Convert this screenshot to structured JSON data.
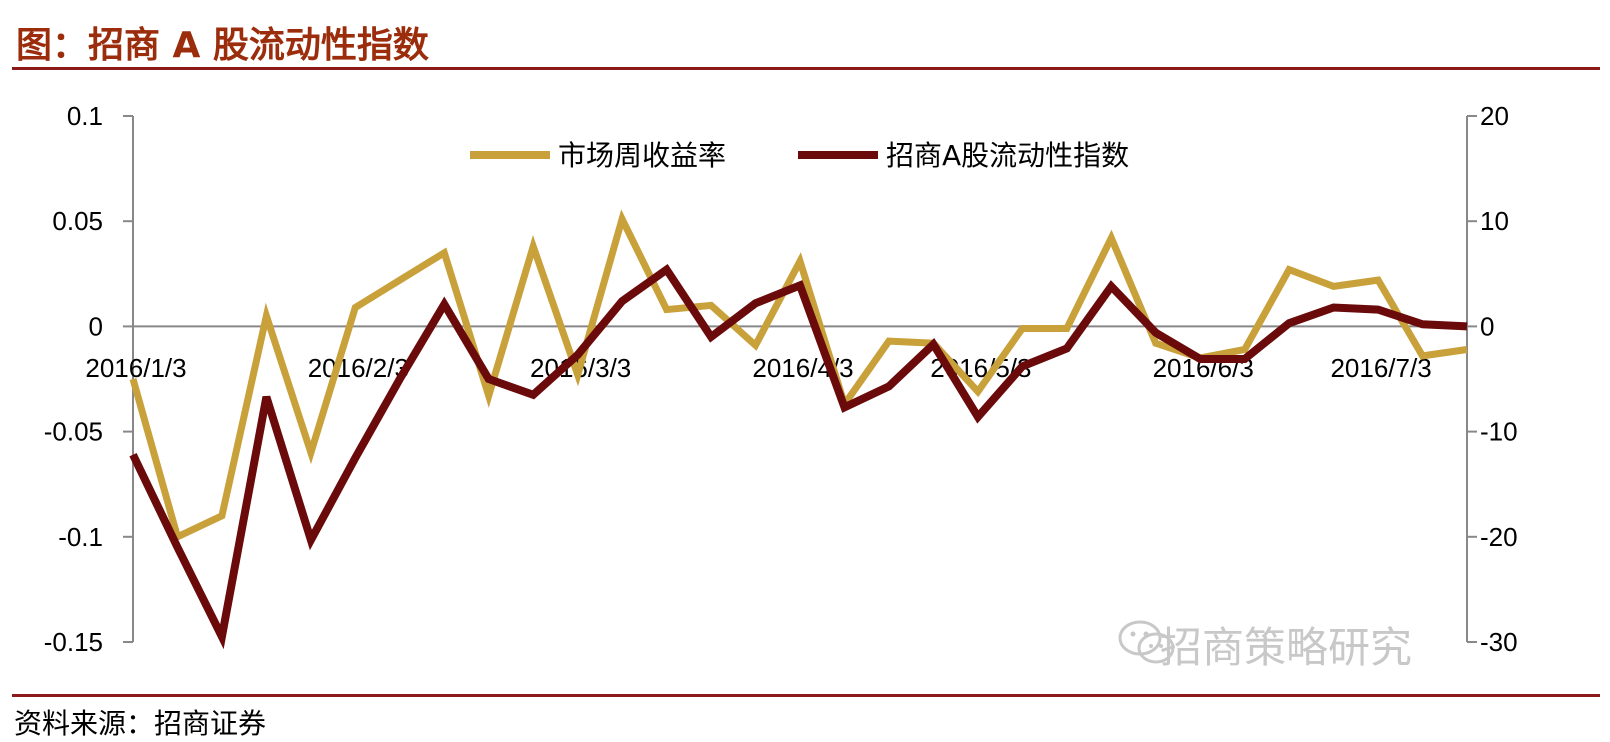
{
  "header": {
    "title": "图：招商 A 股流动性指数"
  },
  "footer": {
    "source": "资料来源：招商证券",
    "watermark": "招商策略研究",
    "watermark_icon": "wechat-icon"
  },
  "colors": {
    "returns": "#c9a13b",
    "liquidity": "#6b0a0a",
    "rule": "#8b1a1a",
    "title": "#9b2d0c"
  },
  "chart_data": {
    "type": "line",
    "title": "",
    "x": [
      0,
      1,
      2,
      3,
      4,
      5,
      6,
      7,
      8,
      9,
      10,
      11,
      12,
      13,
      14,
      15,
      16,
      17,
      18,
      19,
      20,
      21,
      22,
      23,
      24,
      25,
      26,
      27,
      28,
      29,
      30
    ],
    "x_tick_labels": [
      {
        "index": 0,
        "label": "2016/1/3"
      },
      {
        "index": 5,
        "label": "2016/2/3"
      },
      {
        "index": 10,
        "label": "2016/3/3"
      },
      {
        "index": 15,
        "label": "2016/4/3"
      },
      {
        "index": 19,
        "label": "2016/5/3"
      },
      {
        "index": 24,
        "label": "2016/6/3"
      },
      {
        "index": 28,
        "label": "2016/7/3"
      }
    ],
    "y_left": {
      "min": -0.15,
      "max": 0.1,
      "ticks": [
        -0.15,
        -0.1,
        -0.05,
        0,
        0.05,
        0.1
      ],
      "tick_labels": [
        "-0.15",
        "-0.1",
        "-0.05",
        "0",
        "0.05",
        "0.1"
      ]
    },
    "y_right": {
      "min": -30,
      "max": 20,
      "ticks": [
        -30,
        -20,
        -10,
        0,
        10,
        20
      ],
      "tick_labels": [
        "-30",
        "-20",
        "-10",
        "0",
        "10",
        "20"
      ]
    },
    "legend": {
      "position": "top-center"
    },
    "series": [
      {
        "name": "市场周收益率",
        "axis": "left",
        "color": "#c9a13b",
        "values": [
          -0.025,
          -0.1,
          -0.09,
          0.005,
          -0.06,
          0.009,
          0.022,
          0.035,
          -0.033,
          0.038,
          -0.023,
          0.051,
          0.008,
          0.01,
          -0.009,
          0.031,
          -0.037,
          -0.007,
          -0.008,
          -0.031,
          -0.001,
          -0.001,
          0.042,
          -0.008,
          -0.015,
          -0.011,
          0.027,
          0.019,
          0.022,
          -0.014,
          -0.011
        ]
      },
      {
        "name": "招商A股流动性指数",
        "axis": "right",
        "color": "#6b0a0a",
        "values": [
          -12.2,
          -21.0,
          -29.5,
          -6.7,
          -20.3,
          -12.5,
          -5.0,
          2.1,
          -5.0,
          -6.5,
          -2.7,
          2.4,
          5.4,
          -1.0,
          2.2,
          3.9,
          -7.7,
          -5.7,
          -1.7,
          -8.6,
          -3.8,
          -2.1,
          3.8,
          -0.6,
          -3.1,
          -3.1,
          0.3,
          1.8,
          1.6,
          0.2,
          0.0
        ]
      }
    ]
  }
}
